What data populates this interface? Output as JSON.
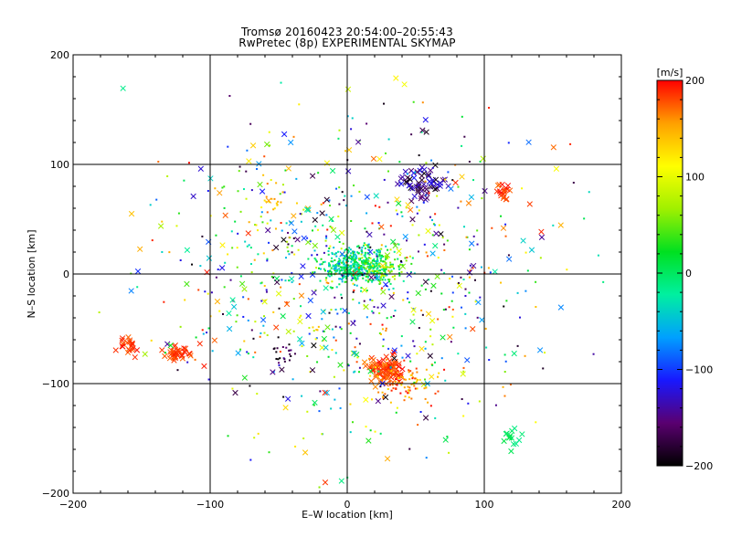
{
  "chart_data": {
    "type": "scatter",
    "title": "Tromsø 20160423 20:54:00–20:55:43",
    "subtitle": "RwPretec (8p) EXPERIMENTAL SKYMAP",
    "xlabel": "E–W location [km]",
    "ylabel": "N–S location [km]",
    "xlim": [
      -200,
      200
    ],
    "ylim": [
      -200,
      200
    ],
    "x_ticks": [
      -200,
      -100,
      0,
      100,
      200
    ],
    "y_ticks": [
      -200,
      -100,
      0,
      100,
      200
    ],
    "x_tick_labels": [
      "−200",
      "−100",
      "0",
      "100",
      "200"
    ],
    "y_tick_labels": [
      "−200",
      "−100",
      "0",
      "100",
      "200"
    ],
    "grid": true,
    "markers": [
      "dot",
      "cross"
    ],
    "colorbar": {
      "label": "[m/s]",
      "range": [
        -200,
        200
      ],
      "ticks": [
        200,
        100,
        0,
        -100,
        -200
      ],
      "tick_labels": [
        "200",
        "100",
        "0",
        "−100",
        "−200"
      ],
      "colormap": [
        "#000000",
        "#5a0070",
        "#1818ff",
        "#00a0ff",
        "#00f0a0",
        "#00e020",
        "#a0f000",
        "#ffff00",
        "#ffa000",
        "#ff0000"
      ]
    },
    "clusters": [
      {
        "center": [
          5,
          8
        ],
        "spread": [
          18,
          14
        ],
        "count": 420,
        "velocity": [
          -60,
          40
        ],
        "marker": "dot"
      },
      {
        "center": [
          25,
          5
        ],
        "spread": [
          14,
          10
        ],
        "count": 120,
        "velocity": [
          -20,
          90
        ],
        "marker": "dot"
      },
      {
        "center": [
          28,
          -88
        ],
        "spread": [
          12,
          10
        ],
        "count": 90,
        "velocity": [
          160,
          200
        ],
        "marker": "cross"
      },
      {
        "center": [
          40,
          -100
        ],
        "spread": [
          18,
          14
        ],
        "count": 90,
        "velocity": [
          120,
          200
        ],
        "marker": "dot"
      },
      {
        "center": [
          55,
          82
        ],
        "spread": [
          12,
          12
        ],
        "count": 60,
        "velocity": [
          -200,
          -110
        ],
        "marker": "cross"
      },
      {
        "center": [
          -125,
          -72
        ],
        "spread": [
          9,
          5
        ],
        "count": 35,
        "velocity": [
          170,
          200
        ],
        "marker": "cross"
      },
      {
        "center": [
          -160,
          -65
        ],
        "spread": [
          7,
          8
        ],
        "count": 22,
        "velocity": [
          170,
          200
        ],
        "marker": "cross"
      },
      {
        "center": [
          112,
          73
        ],
        "spread": [
          6,
          6
        ],
        "count": 18,
        "velocity": [
          170,
          200
        ],
        "marker": "cross"
      },
      {
        "center": [
          120,
          -150
        ],
        "spread": [
          8,
          10
        ],
        "count": 14,
        "velocity": [
          -20,
          10
        ],
        "marker": "cross"
      },
      {
        "center": [
          -55,
          65
        ],
        "spread": [
          6,
          6
        ],
        "count": 14,
        "velocity": [
          110,
          160
        ],
        "marker": "dot"
      },
      {
        "center": [
          -45,
          -75
        ],
        "spread": [
          8,
          8
        ],
        "count": 18,
        "velocity": [
          -200,
          -150
        ],
        "marker": "dot"
      },
      {
        "center": [
          0,
          0
        ],
        "spread": [
          115,
          115
        ],
        "count": 650,
        "velocity": [
          -200,
          200
        ],
        "marker": "dot"
      },
      {
        "center": [
          0,
          0
        ],
        "spread": [
          120,
          120
        ],
        "count": 220,
        "velocity": [
          -200,
          200
        ],
        "marker": "cross"
      }
    ]
  }
}
